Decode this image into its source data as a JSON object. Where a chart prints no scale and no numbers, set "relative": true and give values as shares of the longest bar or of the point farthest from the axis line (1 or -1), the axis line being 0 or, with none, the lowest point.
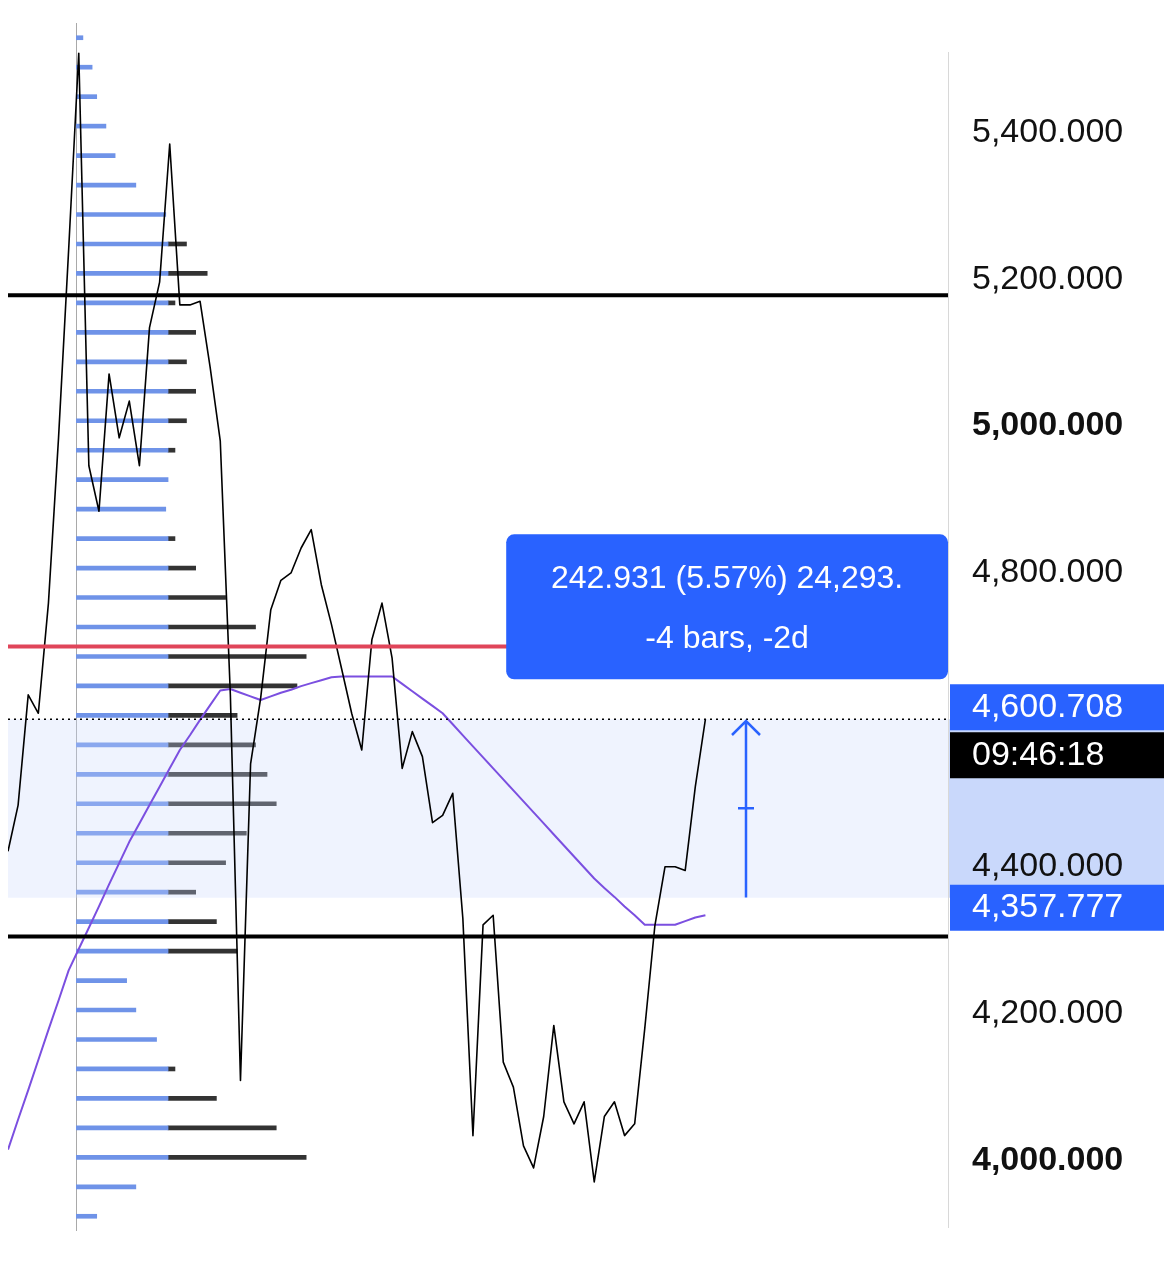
{
  "chart_data": [
    {
      "type": "line",
      "ylim": [
        3908.75,
        5508.75
      ],
      "categories": [
        null,
        null,
        null,
        null,
        null,
        null,
        null,
        null,
        null,
        null,
        null,
        null,
        null,
        null,
        null,
        null,
        null,
        null,
        null,
        null,
        null,
        null,
        null,
        null,
        null,
        null,
        null,
        null,
        null,
        null,
        null,
        null,
        null,
        null,
        null,
        null,
        null,
        null,
        null,
        null,
        null,
        null,
        null,
        null,
        null,
        null,
        null,
        null,
        null,
        null,
        null,
        null,
        null,
        null,
        null,
        null,
        null,
        null,
        null,
        null,
        null,
        null,
        null,
        null,
        null,
        null,
        null,
        null,
        null,
        null,
        null,
        null,
        null,
        null,
        null,
        null,
        null,
        null,
        null,
        null,
        null,
        null,
        null,
        null,
        null,
        null,
        null,
        null,
        null,
        null,
        null,
        null,
        null,
        null
      ],
      "yticks": [
        {
          "value": 4000,
          "label": "4,000.000"
        },
        {
          "value": 4200,
          "label": "4,200.000"
        },
        {
          "value": 4400,
          "label": "4,400.000"
        },
        {
          "value": 4800,
          "label": "4,800.000"
        },
        {
          "value": 5000,
          "label": "5,000.000"
        },
        {
          "value": 5200,
          "label": "5,200.000"
        },
        {
          "value": 5400,
          "label": "5,400.000"
        }
      ],
      "tick_labels": "y",
      "series": [
        {
          "color": "#000000",
          "values": [
            4421,
            4484,
            4634,
            4609,
            4759,
            4984,
            5240,
            5508,
            4946,
            4884,
            5071,
            4984,
            5034,
            4946,
            5134,
            5196,
            5384,
            5165,
            5165,
            5170,
            5080,
            4980,
            4634,
            4109,
            4540,
            4630,
            4750,
            4790,
            4800,
            4834,
            4859,
            4784,
            4730,
            4670,
            4609,
            4559,
            4709,
            4759,
            4684,
            4534,
            4584,
            4550,
            4460,
            4470,
            4500,
            4330,
            4034,
            4321,
            4334,
            4134,
            4100,
            4020,
            3990,
            4060,
            4184,
            4080,
            4050,
            4080,
            3971,
            4060,
            4080,
            4034,
            4050,
            4180,
            4320,
            4400,
            4400,
            4395,
            4509,
            4601,
            null,
            null,
            null,
            null,
            null,
            null,
            null,
            null,
            null,
            null,
            null,
            null,
            null,
            null,
            null,
            null,
            null,
            null,
            null,
            null,
            null,
            null,
            null,
            null
          ]
        },
        {
          "color": "#7b4fe0",
          "values": [
            4015,
            4056,
            4096,
            4137,
            4178,
            4218,
            4259,
            4288,
            4317,
            4346,
            4376,
            4405,
            4434,
            4459,
            4484,
            4509,
            4534,
            4559,
            4579,
            4600,
            4620,
            4640,
            4642,
            4637,
            4632,
            4627,
            4632,
            4637,
            4641,
            4646,
            4650,
            4654,
            4658,
            4659,
            4659,
            4659,
            4659,
            4659,
            4659,
            4649,
            4639,
            4629,
            4619,
            4609,
            4594,
            4579,
            4564,
            4549,
            4534,
            4519,
            4504,
            4489,
            4474,
            4459,
            4444,
            4429,
            4414,
            4399,
            4384,
            4371,
            4359,
            4346,
            4334,
            4321,
            4321,
            4321,
            4321,
            4326,
            4331,
            4334,
            null,
            null,
            null,
            null,
            null,
            null,
            null,
            null,
            null,
            null,
            null,
            null,
            null,
            null,
            null,
            null,
            null,
            null,
            null,
            null,
            null,
            null,
            null,
            null
          ]
        }
      ],
      "ref_lines": [
        {
          "axis": "y",
          "value": 5178,
          "color": "#000000"
        },
        {
          "axis": "y",
          "value": 4700,
          "color": "#e0455a"
        },
        {
          "axis": "y",
          "value": 4305,
          "color": "#000000"
        },
        {
          "axis": "y",
          "value": 4600.708,
          "label": "4,600.708",
          "color": "#000000",
          "line_style": "dotted"
        }
      ],
      "bands": [
        {
          "axis": "y",
          "from": 4357.777,
          "to": 4600.708,
          "label": "4,357.777",
          "color": "#c9d8fb"
        }
      ],
      "annotations": [
        "242.931 (5.57%) 24,293.",
        "-4 bars, -2d",
        "09:46:18"
      ]
    },
    {
      "type": "bar",
      "orientation": "horizontal",
      "relative": true,
      "stacked": true,
      "categories": [
        null,
        null,
        null,
        null,
        null,
        null,
        null,
        null,
        null,
        null,
        null,
        null,
        null,
        null,
        null,
        null,
        null,
        null,
        null,
        null,
        null,
        null,
        null,
        null,
        null,
        null,
        null,
        null,
        null,
        null,
        null,
        null,
        null,
        null,
        null,
        null,
        null,
        null,
        null,
        null,
        null
      ],
      "series": [
        {
          "color": "#6f93e8",
          "values": [
            0.03,
            0.07,
            0.09,
            0.13,
            0.17,
            0.26,
            0.39,
            0.4,
            0.4,
            0.4,
            0.4,
            0.4,
            0.4,
            0.4,
            0.4,
            0.4,
            0.39,
            0.4,
            0.4,
            0.4,
            0.4,
            0.4,
            0.4,
            0.4,
            0.4,
            0.4,
            0.4,
            0.4,
            0.4,
            0.4,
            0.4,
            0.4,
            0.22,
            0.26,
            0.35,
            0.4,
            0.4,
            0.4,
            0.4,
            0.26,
            0.09
          ]
        },
        {
          "color": "#333333",
          "values": [
            null,
            null,
            null,
            null,
            null,
            null,
            null,
            0.08,
            0.17,
            0.03,
            0.12,
            0.08,
            0.12,
            0.08,
            0.03,
            null,
            null,
            0.03,
            0.12,
            0.25,
            0.38,
            0.6,
            0.56,
            0.3,
            0.38,
            0.43,
            0.47,
            0.34,
            0.25,
            0.12,
            0.21,
            0.3,
            null,
            null,
            null,
            0.03,
            0.21,
            0.47,
            0.6,
            null,
            null
          ]
        }
      ]
    }
  ]
}
